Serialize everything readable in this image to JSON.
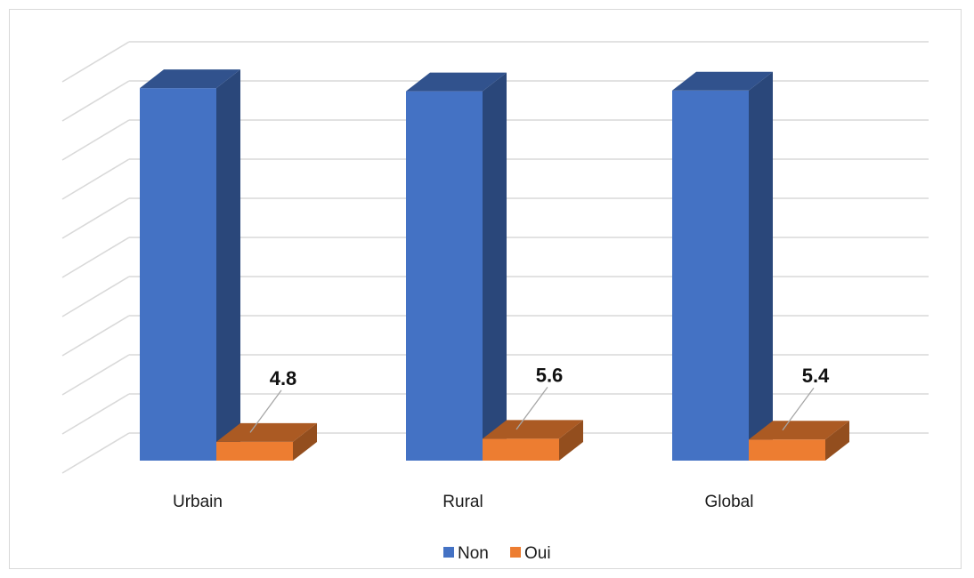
{
  "chart_data": {
    "type": "bar",
    "style": "3d-clustered-column",
    "categories": [
      "Urbain",
      "Rural",
      "Global"
    ],
    "series": [
      {
        "name": "Non",
        "values": [
          95.2,
          94.4,
          94.6
        ],
        "color": "#4472c4"
      },
      {
        "name": "Oui",
        "values": [
          4.8,
          5.6,
          5.4
        ],
        "color": "#ed7d31"
      }
    ],
    "data_labels": {
      "Oui": [
        "4.8",
        "5.6",
        "5.4"
      ]
    },
    "ylim": [
      0,
      100
    ],
    "y_tick_labels_shown": false,
    "grid": true,
    "legend": "bottom-center"
  }
}
